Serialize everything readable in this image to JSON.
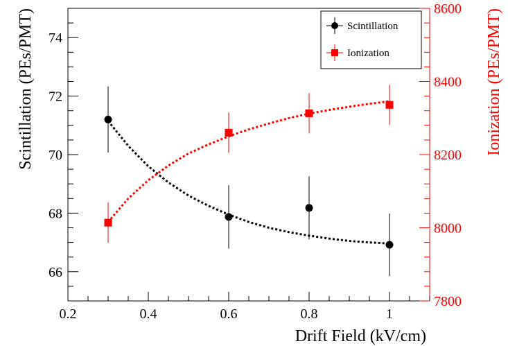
{
  "chart_data": {
    "type": "scatter",
    "title": "",
    "xlabel": "Drift Field (kV/cm)",
    "ylabel_left": "Scintillation (PEs/PMT)",
    "ylabel_right": "Ionization (PEs/PMT)",
    "xlim": [
      0.2,
      1.1
    ],
    "ylim_left": [
      65.0,
      75.0
    ],
    "ylim_right": [
      7800,
      8600
    ],
    "x_ticks": [
      "0.2",
      "0.4",
      "0.6",
      "0.8",
      "1"
    ],
    "y_left_ticks": [
      "66",
      "68",
      "70",
      "72",
      "74"
    ],
    "y_right_ticks": [
      "7800",
      "8000",
      "8200",
      "8400",
      "8600"
    ],
    "legend_position": "top-right",
    "grid": false,
    "colors": {
      "scintillation": "#000000",
      "ionization": "#ff0000"
    },
    "series": [
      {
        "name": "Scintillation",
        "axis": "left",
        "marker": "circle",
        "x": [
          0.3,
          0.6,
          0.8,
          1.0
        ],
        "y": [
          71.2,
          67.87,
          68.18,
          66.92
        ],
        "yerr": [
          1.13,
          1.08,
          1.08,
          1.07
        ],
        "fit": {
          "style": "dotted",
          "x": [
            0.3,
            0.35,
            0.4,
            0.45,
            0.5,
            0.55,
            0.6,
            0.65,
            0.7,
            0.75,
            0.8,
            0.85,
            0.9,
            0.95,
            1.0
          ],
          "y": [
            71.15,
            70.3,
            69.6,
            69.05,
            68.6,
            68.25,
            67.95,
            67.7,
            67.5,
            67.35,
            67.23,
            67.13,
            67.05,
            67.0,
            66.96
          ]
        }
      },
      {
        "name": "Ionization",
        "axis": "right",
        "marker": "square",
        "x": [
          0.3,
          0.6,
          0.8,
          1.0
        ],
        "y": [
          8014,
          8260,
          8313,
          8336
        ],
        "yerr": [
          55,
          55,
          55,
          55
        ],
        "fit": {
          "style": "dotted",
          "x": [
            0.3,
            0.35,
            0.4,
            0.45,
            0.5,
            0.55,
            0.6,
            0.65,
            0.7,
            0.75,
            0.8,
            0.85,
            0.9,
            0.95,
            1.0
          ],
          "y": [
            8016,
            8080,
            8130,
            8170,
            8203,
            8228,
            8250,
            8269,
            8285,
            8300,
            8312,
            8322,
            8331,
            8339,
            8346
          ]
        }
      }
    ]
  }
}
